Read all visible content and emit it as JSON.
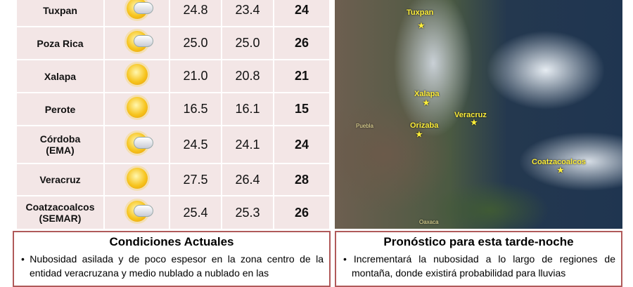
{
  "table": {
    "rows": [
      {
        "station": "Tuxpan",
        "icon": "partly-cloudy-icon",
        "v1": "24.8",
        "v2": "23.4",
        "v3": "24"
      },
      {
        "station": "Poza Rica",
        "icon": "partly-cloudy-icon",
        "v1": "25.0",
        "v2": "25.0",
        "v3": "26"
      },
      {
        "station": "Xalapa",
        "icon": "sunny-icon",
        "v1": "21.0",
        "v2": "20.8",
        "v3": "21"
      },
      {
        "station": "Perote",
        "icon": "sunny-icon",
        "v1": "16.5",
        "v2": "16.1",
        "v3": "15"
      },
      {
        "station": "Córdoba",
        "station2": "(EMA)",
        "icon": "partly-cloudy-icon",
        "v1": "24.5",
        "v2": "24.1",
        "v3": "24"
      },
      {
        "station": "Veracruz",
        "icon": "sunny-icon",
        "v1": "27.5",
        "v2": "26.4",
        "v3": "28"
      },
      {
        "station": "Coatzacoalcos",
        "station2": "(SEMAR)",
        "icon": "partly-cloudy-icon",
        "v1": "25.4",
        "v2": "25.3",
        "v3": "26"
      }
    ]
  },
  "map": {
    "labels": {
      "tuxpan": "Tuxpan",
      "xalapa": "Xalapa",
      "veracruz": "Veracruz",
      "orizaba": "Orizaba",
      "coatza": "Coatzacoalcos",
      "puebla": "Puebla",
      "oaxaca": "Oaxaca"
    }
  },
  "current": {
    "title": "Condiciones Actuales",
    "text": "• Nubosidad asilada y de poco espesor en la zona centro de la entidad veracruzana y medio nublado a nublado en las"
  },
  "forecast": {
    "title": "Pronóstico para esta tarde-noche",
    "text": "• Incrementará la nubosidad a lo largo de regiones de montaña, donde existirá probabilidad para lluvias"
  }
}
